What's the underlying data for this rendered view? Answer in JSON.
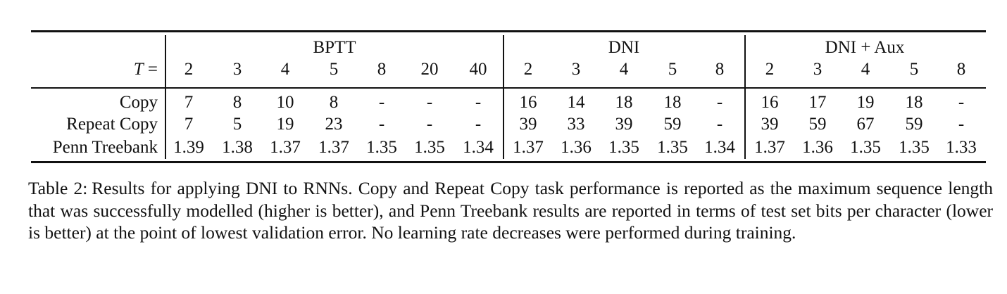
{
  "table": {
    "header_label": "T =",
    "groups": [
      {
        "name": "BPTT",
        "columns": [
          "2",
          "3",
          "4",
          "5",
          "8",
          "20",
          "40"
        ]
      },
      {
        "name": "DNI",
        "columns": [
          "2",
          "3",
          "4",
          "5",
          "8"
        ]
      },
      {
        "name": "DNI + Aux",
        "columns": [
          "2",
          "3",
          "4",
          "5",
          "8"
        ]
      }
    ],
    "rows": [
      {
        "label": "Copy",
        "cells": [
          "7",
          "8",
          "10",
          "8",
          "-",
          "-",
          "-",
          "16",
          "14",
          "18",
          "18",
          "-",
          "16",
          "17",
          "19",
          "18",
          "-"
        ]
      },
      {
        "label": "Repeat Copy",
        "cells": [
          "7",
          "5",
          "19",
          "23",
          "-",
          "-",
          "-",
          "39",
          "33",
          "39",
          "59",
          "-",
          "39",
          "59",
          "67",
          "59",
          "-"
        ]
      },
      {
        "label": "Penn Treebank",
        "cells": [
          "1.39",
          "1.38",
          "1.37",
          "1.37",
          "1.35",
          "1.35",
          "1.34",
          "1.37",
          "1.36",
          "1.35",
          "1.35",
          "1.34",
          "1.37",
          "1.36",
          "1.35",
          "1.35",
          "1.33"
        ]
      }
    ]
  },
  "caption": {
    "label": "Table 2:",
    "text": "Results for applying DNI to RNNs. Copy and Repeat Copy task performance is reported as the maximum sequence length that was successfully modelled (higher is better), and Penn Treebank results are reported in terms of test set bits per character (lower is better) at the point of lowest validation error. No learning rate decreases were performed during training."
  }
}
